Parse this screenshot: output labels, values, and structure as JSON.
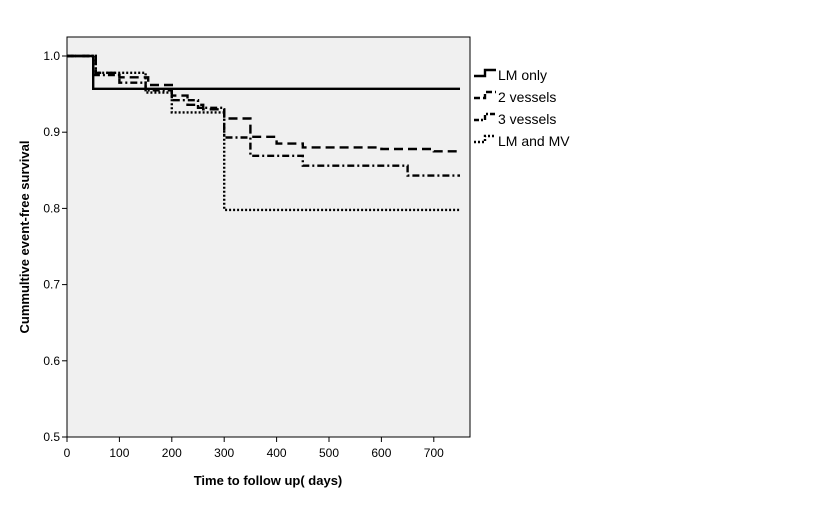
{
  "chart_data": {
    "type": "line",
    "subtype": "kaplan-meier-step",
    "title": "",
    "xlabel": "Time to follow up( days)",
    "ylabel": "Cummultive event-free survival",
    "xlim": [
      0,
      750
    ],
    "ylim": [
      0.5,
      1.02
    ],
    "xticks": [
      0,
      100,
      200,
      300,
      400,
      500,
      600,
      700
    ],
    "yticks": [
      0.5,
      0.6,
      0.7,
      0.8,
      0.9,
      1.0
    ],
    "ytick_labels": [
      "0.5",
      "0.6",
      "0.7",
      "0.8",
      "0.9",
      "1.0"
    ],
    "grid": false,
    "legend_position": "right",
    "plot_background": "#f0f0f0",
    "series": [
      {
        "name": "LM only",
        "line_style": "solid",
        "x": [
          0,
          50,
          750
        ],
        "y": [
          1.0,
          0.957,
          0.957
        ]
      },
      {
        "name": "2 vessels",
        "line_style": "dashed",
        "x": [
          0,
          55,
          100,
          155,
          200,
          230,
          260,
          300,
          350,
          400,
          450,
          600,
          700,
          750
        ],
        "y": [
          1.0,
          0.978,
          0.972,
          0.962,
          0.948,
          0.936,
          0.93,
          0.918,
          0.894,
          0.885,
          0.88,
          0.878,
          0.875,
          0.875
        ]
      },
      {
        "name": "3 vessels",
        "line_style": "dash-dot",
        "x": [
          0,
          50,
          100,
          150,
          200,
          250,
          300,
          350,
          450,
          650,
          750
        ],
        "y": [
          1.0,
          0.975,
          0.965,
          0.955,
          0.942,
          0.932,
          0.893,
          0.869,
          0.856,
          0.843,
          0.843
        ]
      },
      {
        "name": "LM and MV",
        "line_style": "dotted",
        "x": [
          0,
          55,
          150,
          200,
          300,
          750
        ],
        "y": [
          1.0,
          0.978,
          0.952,
          0.926,
          0.798,
          0.798
        ]
      }
    ]
  }
}
